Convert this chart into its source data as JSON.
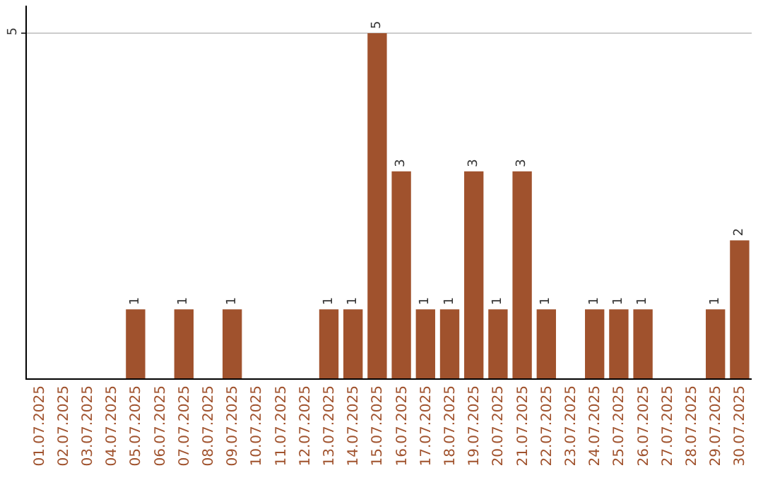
{
  "chart_data": {
    "type": "bar",
    "categories": [
      "01.07.2025",
      "02.07.2025",
      "03.07.2025",
      "04.07.2025",
      "05.07.2025",
      "06.07.2025",
      "07.07.2025",
      "08.07.2025",
      "09.07.2025",
      "10.07.2025",
      "11.07.2025",
      "12.07.2025",
      "13.07.2025",
      "14.07.2025",
      "15.07.2025",
      "16.07.2025",
      "17.07.2025",
      "18.07.2025",
      "19.07.2025",
      "20.07.2025",
      "21.07.2025",
      "22.07.2025",
      "23.07.2025",
      "24.07.2025",
      "25.07.2025",
      "26.07.2025",
      "27.07.2025",
      "28.07.2025",
      "29.07.2025",
      "30.07.2025"
    ],
    "values": [
      0,
      0,
      0,
      0,
      1,
      0,
      1,
      0,
      1,
      0,
      0,
      0,
      1,
      1,
      5,
      3,
      1,
      1,
      3,
      1,
      3,
      1,
      0,
      1,
      1,
      1,
      0,
      0,
      1,
      2
    ],
    "value_labels": [
      null,
      null,
      null,
      null,
      "1",
      null,
      "1",
      null,
      "1",
      null,
      null,
      null,
      "1",
      "1",
      "5",
      "3",
      "1",
      "1",
      "3",
      "1",
      "3",
      "1",
      null,
      "1",
      "1",
      "1",
      null,
      null,
      "1",
      "2"
    ],
    "color": "#a0522d",
    "ylim": [
      0,
      5.4
    ],
    "yticks": [
      5
    ],
    "grid": "y",
    "legend": false
  }
}
